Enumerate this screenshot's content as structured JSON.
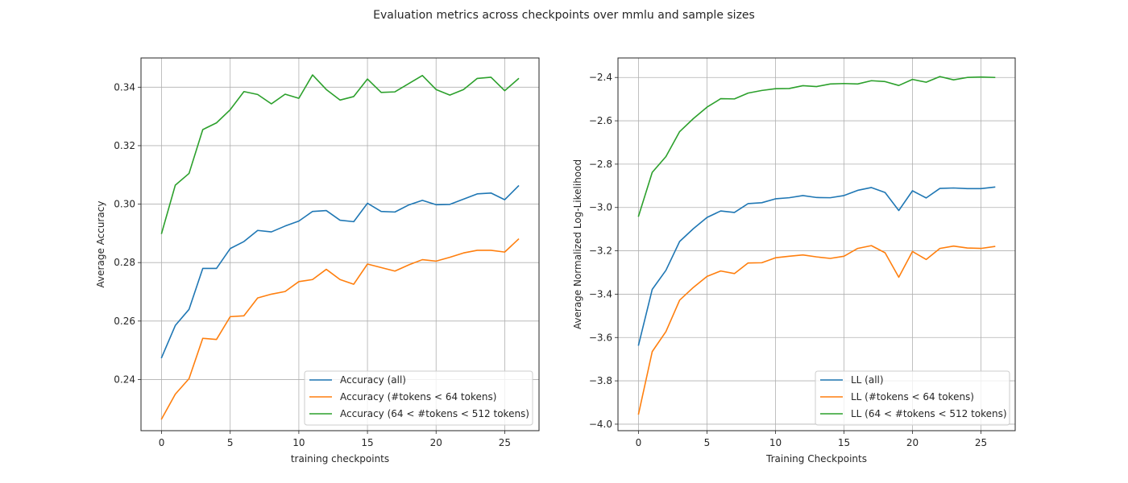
{
  "figure_title": "Evaluation metrics across checkpoints over mmlu and sample sizes",
  "colors": {
    "blue": "#1f77b4",
    "orange": "#ff7f0e",
    "green": "#2ca02c"
  },
  "chart_data": [
    {
      "type": "line",
      "xlabel": "training checkpoints",
      "ylabel": "Average Accuracy",
      "xlim": [
        -1.5,
        27.5
      ],
      "ylim": [
        0.2225,
        0.35
      ],
      "xticks": [
        0,
        5,
        10,
        15,
        20,
        25
      ],
      "yticks": [
        0.24,
        0.26,
        0.28,
        0.3,
        0.32,
        0.34
      ],
      "ytick_labels": [
        "0.24",
        "0.26",
        "0.28",
        "0.30",
        "0.32",
        "0.34"
      ],
      "grid": true,
      "legend_position": "lower-right",
      "x": [
        0,
        1,
        2,
        3,
        4,
        5,
        6,
        7,
        8,
        9,
        10,
        11,
        12,
        13,
        14,
        15,
        16,
        17,
        18,
        19,
        20,
        21,
        22,
        23,
        24,
        25,
        26
      ],
      "series": [
        {
          "name": "Accuracy (all)",
          "color": "#1f77b4",
          "values": [
            0.2475,
            0.2585,
            0.264,
            0.278,
            0.278,
            0.2848,
            0.2872,
            0.291,
            0.2905,
            0.2925,
            0.2942,
            0.2975,
            0.2978,
            0.2945,
            0.294,
            0.3003,
            0.2975,
            0.2973,
            0.2997,
            0.3013,
            0.2998,
            0.2999,
            0.3017,
            0.3035,
            0.3038,
            0.3015,
            0.3062
          ]
        },
        {
          "name": "Accuracy (#tokens < 64 tokens)",
          "color": "#ff7f0e",
          "values": [
            0.2265,
            0.235,
            0.2403,
            0.2541,
            0.2537,
            0.2615,
            0.2618,
            0.2679,
            0.2692,
            0.2701,
            0.2735,
            0.2742,
            0.2777,
            0.2742,
            0.2726,
            0.2795,
            0.2783,
            0.2771,
            0.2792,
            0.281,
            0.2805,
            0.2818,
            0.2833,
            0.2842,
            0.2842,
            0.2836,
            0.288
          ]
        },
        {
          "name": "Accuracy (64 < #tokens < 512 tokens)",
          "color": "#2ca02c",
          "values": [
            0.29,
            0.3065,
            0.3105,
            0.3255,
            0.3278,
            0.3323,
            0.3385,
            0.3375,
            0.3343,
            0.3376,
            0.3362,
            0.3442,
            0.3392,
            0.3356,
            0.3368,
            0.3428,
            0.3382,
            0.3384,
            0.3412,
            0.344,
            0.3392,
            0.3373,
            0.3392,
            0.343,
            0.3434,
            0.3388,
            0.3429
          ]
        }
      ]
    },
    {
      "type": "line",
      "xlabel": "Training Checkpoints",
      "ylabel": "Average Normalized Log-Likelihood",
      "xlim": [
        -1.5,
        27.5
      ],
      "ylim": [
        -4.03,
        -2.31
      ],
      "xticks": [
        0,
        5,
        10,
        15,
        20,
        25
      ],
      "yticks": [
        -4.0,
        -3.8,
        -3.6,
        -3.4,
        -3.2,
        -3.0,
        -2.8,
        -2.6,
        -2.4
      ],
      "ytick_labels": [
        "−4.0",
        "−3.8",
        "−3.6",
        "−3.4",
        "−3.2",
        "−3.0",
        "−2.8",
        "−2.6",
        "−2.4"
      ],
      "grid": true,
      "legend_position": "lower-right",
      "x": [
        0,
        1,
        2,
        3,
        4,
        5,
        6,
        7,
        8,
        9,
        10,
        11,
        12,
        13,
        14,
        15,
        16,
        17,
        18,
        19,
        20,
        21,
        22,
        23,
        24,
        25,
        26
      ],
      "series": [
        {
          "name": "LL (all)",
          "color": "#1f77b4",
          "values": [
            -3.635,
            -3.378,
            -3.29,
            -3.157,
            -3.098,
            -3.046,
            -3.016,
            -3.023,
            -2.982,
            -2.978,
            -2.96,
            -2.955,
            -2.945,
            -2.954,
            -2.955,
            -2.945,
            -2.921,
            -2.908,
            -2.931,
            -3.014,
            -2.923,
            -2.956,
            -2.912,
            -2.91,
            -2.913,
            -2.913,
            -2.906
          ]
        },
        {
          "name": "LL (#tokens < 64 tokens)",
          "color": "#ff7f0e",
          "values": [
            -3.953,
            -3.665,
            -3.573,
            -3.428,
            -3.369,
            -3.318,
            -3.293,
            -3.305,
            -3.256,
            -3.255,
            -3.232,
            -3.225,
            -3.219,
            -3.228,
            -3.235,
            -3.225,
            -3.189,
            -3.176,
            -3.209,
            -3.322,
            -3.203,
            -3.24,
            -3.189,
            -3.178,
            -3.187,
            -3.189,
            -3.18
          ]
        },
        {
          "name": "LL (64 < #tokens < 512 tokens)",
          "color": "#2ca02c",
          "values": [
            -3.04,
            -2.838,
            -2.765,
            -2.65,
            -2.59,
            -2.537,
            -2.498,
            -2.499,
            -2.472,
            -2.46,
            -2.452,
            -2.451,
            -2.438,
            -2.442,
            -2.43,
            -2.428,
            -2.43,
            -2.415,
            -2.419,
            -2.437,
            -2.409,
            -2.422,
            -2.396,
            -2.411,
            -2.4,
            -2.398,
            -2.4
          ]
        }
      ]
    }
  ]
}
